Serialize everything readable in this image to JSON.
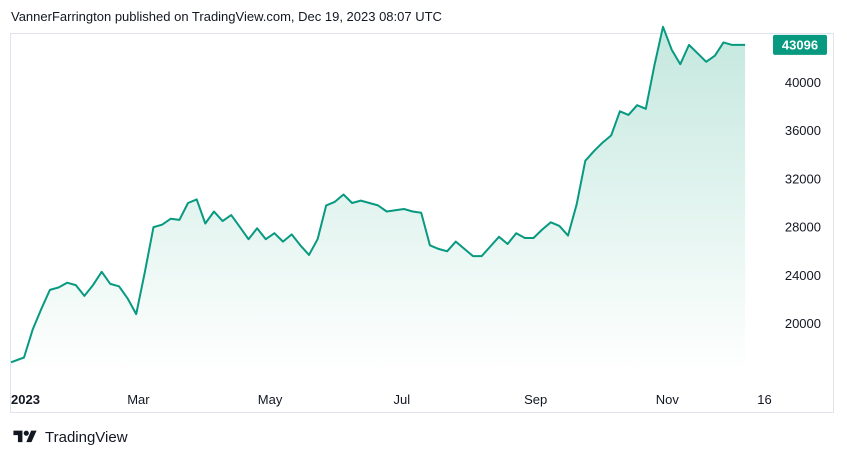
{
  "header": {
    "attribution": "VannerFarrington published on TradingView.com, Dec 19, 2023 08:07 UTC"
  },
  "footer": {
    "brand": "TradingView",
    "logo_icon": "tradingview-logo-icon"
  },
  "colors": {
    "line": "#089981",
    "area_top": "#c4e8de",
    "area_bottom": "#ffffff",
    "badge_bg": "#089981",
    "badge_text": "#ffffff",
    "axis_text": "#131722",
    "frame": "#e0e3eb"
  },
  "chart_data": {
    "type": "area",
    "x_tick_labels": [
      "2023",
      "Mar",
      "May",
      "Jul",
      "Sep",
      "Nov",
      "16"
    ],
    "x_tick_days": [
      0,
      59,
      120,
      181,
      243,
      304,
      349
    ],
    "y_tick_labels": [
      "20000",
      "24000",
      "28000",
      "32000",
      "36000",
      "40000"
    ],
    "y_ticks": [
      20000,
      24000,
      28000,
      32000,
      36000,
      40000
    ],
    "ylim": [
      16000,
      44000
    ],
    "xlim": [
      0,
      352
    ],
    "last_value": 43096,
    "last_value_label": "43096",
    "grid": false,
    "series": [
      {
        "x": [
          0,
          6,
          10,
          14,
          18,
          22,
          26,
          30,
          34,
          38,
          42,
          46,
          50,
          54,
          58,
          62,
          66,
          70,
          74,
          78,
          82,
          86,
          90,
          94,
          98,
          102,
          106,
          110,
          114,
          118,
          122,
          126,
          130,
          134,
          138,
          142,
          146,
          150,
          154,
          158,
          162,
          166,
          170,
          174,
          178,
          182,
          186,
          190,
          194,
          198,
          202,
          206,
          210,
          214,
          218,
          222,
          226,
          230,
          234,
          238,
          242,
          246,
          250,
          254,
          258,
          262,
          266,
          270,
          274,
          278,
          282,
          286,
          290,
          294,
          298,
          300,
          302,
          306,
          310,
          314,
          318,
          322,
          326,
          330,
          334,
          338,
          340,
          342,
          344,
          346,
          348,
          350,
          352
        ],
        "y": [
          16800,
          17200,
          19500,
          21200,
          22800,
          23000,
          23400,
          23200,
          22300,
          23200,
          24300,
          23300,
          23100,
          22100,
          20800,
          24300,
          28000,
          28200,
          28700,
          28600,
          30000,
          30300,
          28300,
          29300,
          28500,
          29000,
          28000,
          27000,
          27900,
          27000,
          27500,
          26800,
          27400,
          26500,
          25700,
          27000,
          29800,
          30100,
          30700,
          30000,
          30200,
          30000,
          29800,
          29300,
          29400,
          29500,
          29300,
          29200,
          26500,
          26200,
          26000,
          26800,
          26200,
          25600,
          25600,
          26400,
          27200,
          26600,
          27500,
          27100,
          27100,
          27800,
          28400,
          28100,
          27300,
          29900,
          33500,
          34300,
          35000,
          35600,
          37600,
          37300,
          38100,
          37800,
          41400,
          43000,
          44600,
          42700,
          41500,
          43100,
          42400,
          41700,
          42200,
          43300,
          43096,
          43096,
          43096,
          43096,
          43096,
          43096,
          43096,
          43096,
          43096
        ]
      }
    ]
  }
}
